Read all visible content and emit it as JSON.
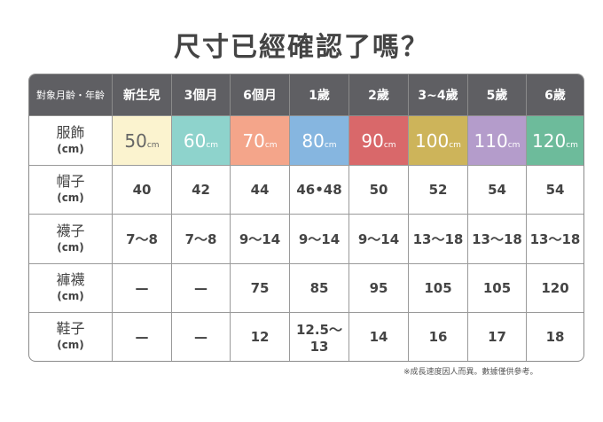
{
  "title": "尺寸已經確認了嗎？",
  "table": {
    "header": [
      "對象月齡・年齡",
      "新生兒",
      "3個月",
      "6個月",
      "1歲",
      "2歲",
      "3~4歲",
      "5歲",
      "6歲"
    ],
    "size_unit": "cm",
    "size_colors": [
      "#fbf3cf",
      "#8ed3cc",
      "#f4a58a",
      "#86b6e0",
      "#d9686a",
      "#cdb45a",
      "#b49ccb",
      "#6dbb9b"
    ],
    "rows": [
      {
        "label": "服飾",
        "unit": "(cm)",
        "cells": [
          "50",
          "60",
          "70",
          "80",
          "90",
          "100",
          "110",
          "120"
        ]
      },
      {
        "label": "帽子",
        "unit": "(cm)",
        "cells": [
          "40",
          "42",
          "44",
          "46•48",
          "50",
          "52",
          "54",
          "54"
        ]
      },
      {
        "label": "襪子",
        "unit": "(cm)",
        "cells": [
          "7～8",
          "7～8",
          "9～14",
          "9～14",
          "9～14",
          "13～18",
          "13～18",
          "13～18"
        ]
      },
      {
        "label": "褲襪",
        "unit": "(cm)",
        "cells": [
          "—",
          "—",
          "75",
          "85",
          "95",
          "105",
          "105",
          "120"
        ]
      },
      {
        "label": "鞋子",
        "unit": "(cm)",
        "cells": [
          "—",
          "—",
          "12",
          "12.5～13",
          "14",
          "16",
          "17",
          "18"
        ]
      }
    ]
  },
  "footnote": "※成長速度因人而異。數據僅供參考。"
}
